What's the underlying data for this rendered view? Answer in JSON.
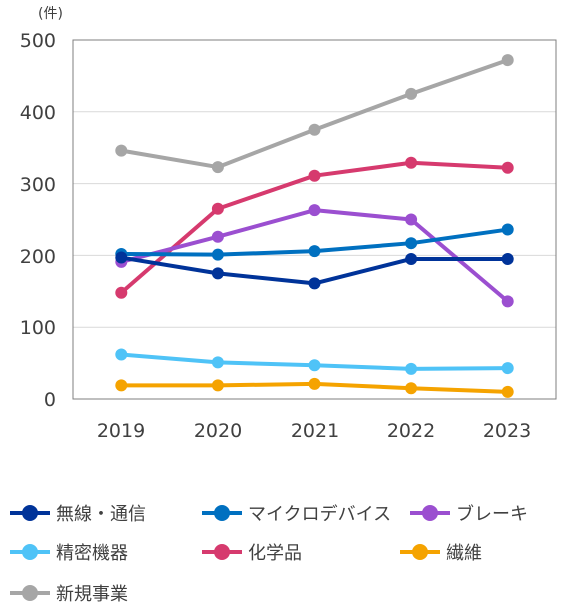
{
  "chart_data": {
    "type": "line",
    "unit_label": "(件)",
    "x": [
      "2019",
      "2020",
      "2021",
      "2022",
      "2023"
    ],
    "ylim": [
      0,
      500
    ],
    "yticks": [
      "0",
      "100",
      "200",
      "300",
      "400",
      "500"
    ],
    "grid": true,
    "legend_position": "bottom",
    "series": [
      {
        "name": "無線・通信",
        "color": "#003399",
        "values": [
          197,
          175,
          161,
          195,
          195
        ]
      },
      {
        "name": "マイクロデバイス",
        "color": "#0070C0",
        "values": [
          202,
          201,
          206,
          217,
          236
        ]
      },
      {
        "name": "ブレーキ",
        "color": "#9B4FD0",
        "values": [
          191,
          226,
          263,
          250,
          136
        ]
      },
      {
        "name": "精密機器",
        "color": "#4FC3F7",
        "values": [
          62,
          51,
          47,
          42,
          43
        ]
      },
      {
        "name": "化学品",
        "color": "#D63A6E",
        "values": [
          148,
          265,
          311,
          329,
          322
        ]
      },
      {
        "name": "繊維",
        "color": "#F5A300",
        "values": [
          19,
          19,
          21,
          15,
          10
        ]
      },
      {
        "name": "新規事業",
        "color": "#A6A6A6",
        "values": [
          346,
          323,
          375,
          425,
          472
        ]
      }
    ]
  }
}
